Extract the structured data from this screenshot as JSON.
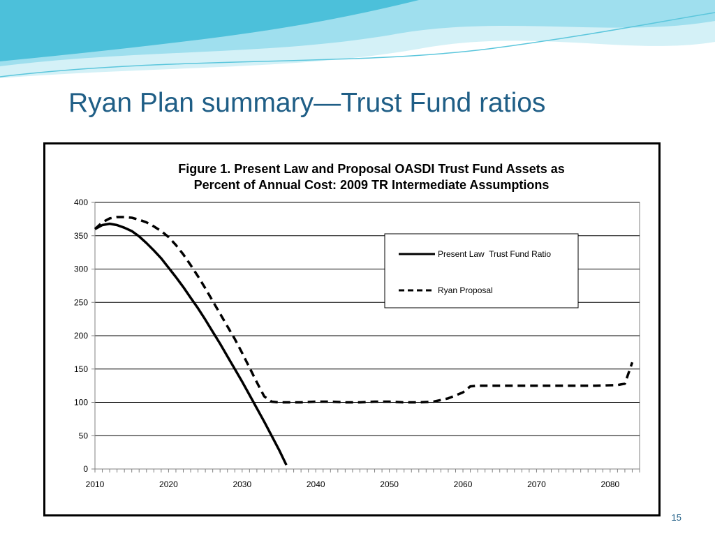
{
  "slide": {
    "title": "Ryan Plan summary—Trust Fund ratios",
    "page_number": "15"
  },
  "colors": {
    "title": "#1f5e86",
    "wave_light": "#bfeaf4",
    "wave_mid": "#7fd3e6",
    "wave_dark": "#2fb3d1",
    "line": "#000000"
  },
  "chart_data": {
    "type": "line",
    "title_lines": [
      "Figure 1. Present Law and Proposal OASDI Trust Fund Assets as",
      "Percent of Annual Cost: 2009 TR Intermediate Assumptions"
    ],
    "xlabel": "",
    "ylabel": "",
    "xlim": [
      2010,
      2084
    ],
    "ylim": [
      0,
      400
    ],
    "x_ticks": [
      2010,
      2020,
      2030,
      2040,
      2050,
      2060,
      2070,
      2080
    ],
    "y_ticks": [
      0,
      50,
      100,
      150,
      200,
      250,
      300,
      350,
      400
    ],
    "grid": "horizontal",
    "legend_position": "upper-right",
    "series": [
      {
        "name": "Present Law  Trust Fund Ratio",
        "style": "solid",
        "points": [
          [
            2010,
            360
          ],
          [
            2011,
            366
          ],
          [
            2012,
            368
          ],
          [
            2013,
            366
          ],
          [
            2014,
            362
          ],
          [
            2015,
            357
          ],
          [
            2016,
            349
          ],
          [
            2017,
            339
          ],
          [
            2018,
            328
          ],
          [
            2019,
            316
          ],
          [
            2020,
            302
          ],
          [
            2021,
            288
          ],
          [
            2022,
            273
          ],
          [
            2023,
            257
          ],
          [
            2024,
            241
          ],
          [
            2025,
            224
          ],
          [
            2026,
            206
          ],
          [
            2027,
            188
          ],
          [
            2028,
            169
          ],
          [
            2029,
            150
          ],
          [
            2030,
            131
          ],
          [
            2031,
            111
          ],
          [
            2032,
            91
          ],
          [
            2033,
            71
          ],
          [
            2034,
            50
          ],
          [
            2035,
            29
          ],
          [
            2036,
            6
          ]
        ]
      },
      {
        "name": "Ryan Proposal",
        "style": "dashed",
        "points": [
          [
            2010,
            360
          ],
          [
            2011,
            370
          ],
          [
            2012,
            376
          ],
          [
            2013,
            378
          ],
          [
            2014,
            378
          ],
          [
            2015,
            377
          ],
          [
            2016,
            374
          ],
          [
            2017,
            370
          ],
          [
            2018,
            364
          ],
          [
            2019,
            357
          ],
          [
            2020,
            348
          ],
          [
            2021,
            336
          ],
          [
            2022,
            322
          ],
          [
            2023,
            306
          ],
          [
            2024,
            289
          ],
          [
            2025,
            271
          ],
          [
            2026,
            252
          ],
          [
            2027,
            233
          ],
          [
            2028,
            214
          ],
          [
            2029,
            195
          ],
          [
            2030,
            174
          ],
          [
            2031,
            152
          ],
          [
            2032,
            130
          ],
          [
            2033,
            109
          ],
          [
            2034,
            101
          ],
          [
            2035,
            100
          ],
          [
            2036,
            100
          ],
          [
            2038,
            100
          ],
          [
            2040,
            101
          ],
          [
            2042,
            101
          ],
          [
            2044,
            100
          ],
          [
            2046,
            100
          ],
          [
            2048,
            101
          ],
          [
            2050,
            101
          ],
          [
            2052,
            100
          ],
          [
            2054,
            100
          ],
          [
            2056,
            101
          ],
          [
            2058,
            106
          ],
          [
            2060,
            115
          ],
          [
            2061,
            124
          ],
          [
            2062,
            125
          ],
          [
            2070,
            125
          ],
          [
            2078,
            125
          ],
          [
            2081,
            126
          ],
          [
            2082,
            128
          ],
          [
            2083,
            160
          ]
        ]
      }
    ]
  }
}
